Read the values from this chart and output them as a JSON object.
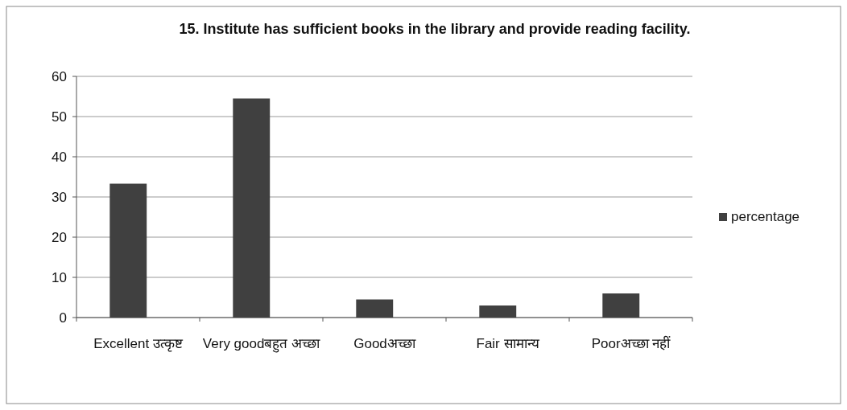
{
  "chart_data": {
    "type": "bar",
    "title": "15. Institute has sufficient books in the library and provide reading facility.",
    "categories": [
      "Excellent उत्कृष्ट",
      "Very goodबहुत अच्छा",
      "Goodअच्छा",
      "Fair सामान्य",
      "Poorअच्छा नहीं"
    ],
    "series": [
      {
        "name": "percentage",
        "color": "#404040",
        "values": [
          33.3,
          54.5,
          4.5,
          3,
          6
        ]
      }
    ],
    "ylim": [
      0,
      60
    ],
    "yticks": [
      0,
      10,
      20,
      30,
      40,
      50,
      60
    ],
    "grid": "y",
    "legend": "right"
  }
}
